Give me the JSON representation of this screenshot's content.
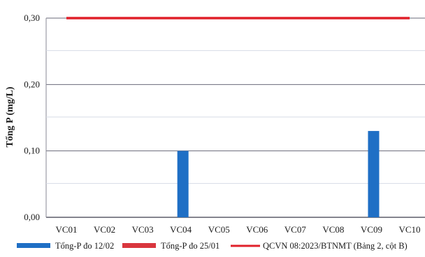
{
  "chart_data": {
    "type": "bar",
    "ylabel": "Tổng P (mg/L)",
    "xlabel": "",
    "ylim": [
      0,
      0.3
    ],
    "yticks": [
      {
        "value": 0.0,
        "label": "0,00"
      },
      {
        "value": 0.1,
        "label": "0,10"
      },
      {
        "value": 0.2,
        "label": "0,20"
      },
      {
        "value": 0.3,
        "label": "0,30"
      }
    ],
    "categories": [
      "VC01",
      "VC02",
      "VC03",
      "VC04",
      "VC05",
      "VC06",
      "VC07",
      "VC08",
      "VC09",
      "VC10"
    ],
    "series": [
      {
        "name": "Tổng-P đo 12/02",
        "color": "#1f6fc5",
        "type": "bar",
        "values": [
          0,
          0,
          0,
          0.1,
          0,
          0,
          0,
          0,
          0.13,
          0
        ]
      },
      {
        "name": "Tổng-P đo 25/01",
        "color": "#d9363e",
        "type": "bar",
        "values": [
          0,
          0,
          0,
          0,
          0,
          0,
          0,
          0,
          0,
          0
        ]
      },
      {
        "name": "QCVN 08:2023/BTNMT (Bảng 2, cột B)",
        "color": "#e0202a",
        "type": "line",
        "values": [
          0.3,
          0.3,
          0.3,
          0.3,
          0.3,
          0.3,
          0.3,
          0.3,
          0.3,
          0.3
        ]
      }
    ],
    "grid": true,
    "legend": "bottom"
  }
}
